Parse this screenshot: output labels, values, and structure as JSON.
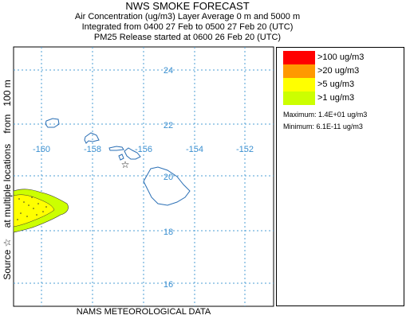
{
  "header": {
    "title": "NWS SMOKE FORECAST",
    "line1": "Air Concentration (ug/m3) Layer Average    0 m and  5000 m",
    "line2": "Integrated from 0400 27 Feb to 0500 27 Feb 20 (UTC)",
    "line3": "PM25 Release started at 0600 26 Feb 20 (UTC)"
  },
  "side_label": "Source ☆    at multiple locations    from   100 m",
  "bottom_label": "NAMS METEOROLOGICAL DATA",
  "map": {
    "lat_labels": [
      "24",
      "22",
      "20",
      "18",
      "16"
    ],
    "lon_labels": [
      "-160",
      "-158",
      "-156",
      "-154",
      "-152"
    ],
    "source_marker": "☆",
    "grid_color": "#4d9fd6",
    "coast_color": "#2a6fb5"
  },
  "legend": {
    "items": [
      {
        "label": ">100 ug/m3",
        "color": "#ff0000"
      },
      {
        "label": ">20 ug/m3",
        "color": "#ff9900"
      },
      {
        "label": ">5 ug/m3",
        "color": "#ffff00"
      },
      {
        "label": ">1 ug/m3",
        "color": "#ccff00"
      }
    ],
    "maximum": "Maximum: 1.4E+01 ug/m3",
    "minimum": "Minimum: 6.1E-11 ug/m3"
  }
}
